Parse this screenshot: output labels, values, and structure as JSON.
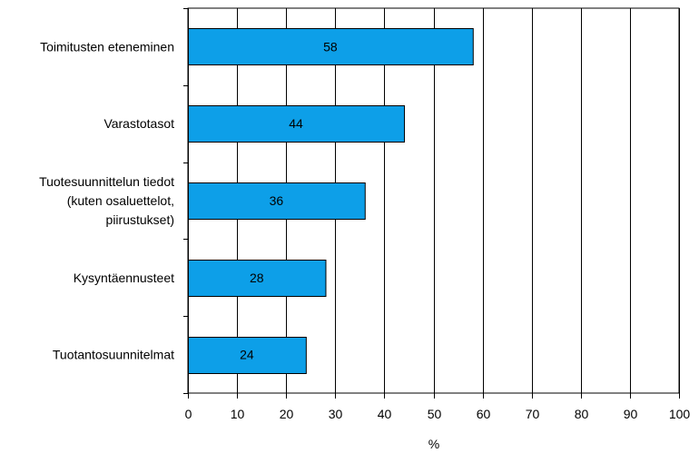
{
  "chart_data": {
    "type": "bar",
    "orientation": "horizontal",
    "categories": [
      [
        "Toimitusten eteneminen"
      ],
      [
        "Varastotasot"
      ],
      [
        "Tuotesuunnittelun tiedot",
        "(kuten osaluettelot,",
        "piirustukset)"
      ],
      [
        "Kysyntäennusteet"
      ],
      [
        "Tuotantosuunnitelmat"
      ]
    ],
    "values": [
      58,
      44,
      36,
      28,
      24
    ],
    "data_labels": [
      "58",
      "44",
      "36",
      "28",
      "24"
    ],
    "xlim": [
      0,
      100
    ],
    "xticks": [
      0,
      10,
      20,
      30,
      40,
      50,
      60,
      70,
      80,
      90,
      100
    ],
    "xlabel": "%",
    "grid": "vertical",
    "colors": {
      "bar": "#0d9fe8",
      "bar_edge": "#000000",
      "grid": "#000000"
    }
  }
}
